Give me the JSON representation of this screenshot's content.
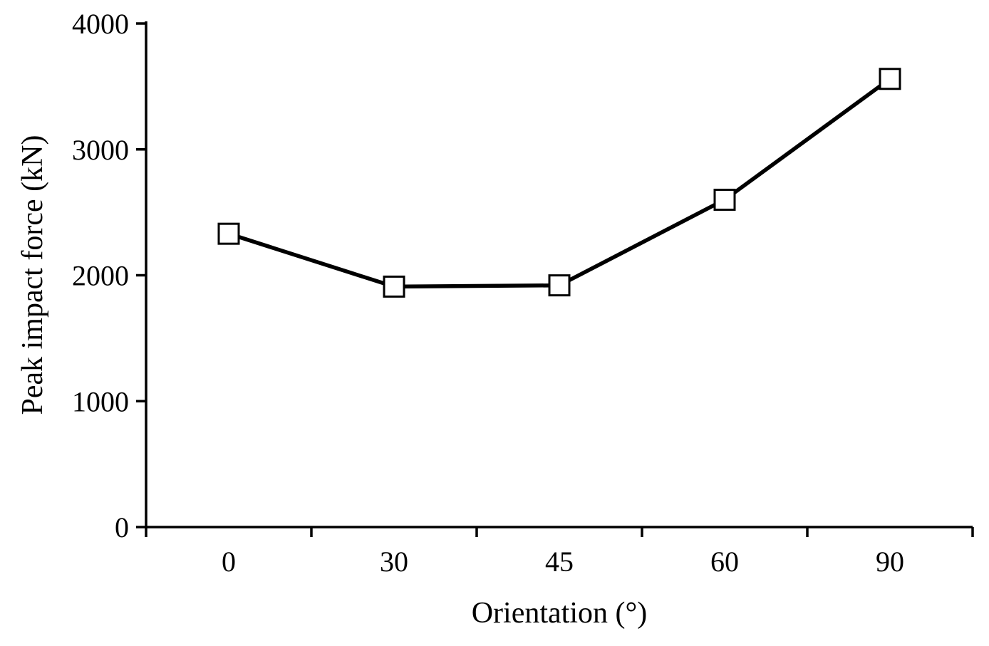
{
  "chart_data": {
    "type": "line",
    "x_axis_type": "category",
    "x": [
      0,
      30,
      45,
      60,
      90
    ],
    "x_labels": [
      "0",
      "30",
      "45",
      "60",
      "90"
    ],
    "series": [
      {
        "name": "Peak impact force",
        "values": [
          2330,
          1910,
          1920,
          2600,
          3560
        ]
      }
    ],
    "title": "",
    "xlabel": "Orientation (°)",
    "ylabel": "Peak impact force (kN)",
    "ylim": [
      0,
      4000
    ],
    "y_ticks": [
      0,
      1000,
      2000,
      3000,
      4000
    ],
    "y_tick_labels": [
      "0",
      "1000",
      "2000",
      "3000",
      "4000"
    ],
    "marker": "open-square",
    "marker_fill": "#ffffff",
    "line_color": "#000000",
    "axis_color": "#000000",
    "background": "#ffffff",
    "grid": false,
    "legend": "none"
  }
}
